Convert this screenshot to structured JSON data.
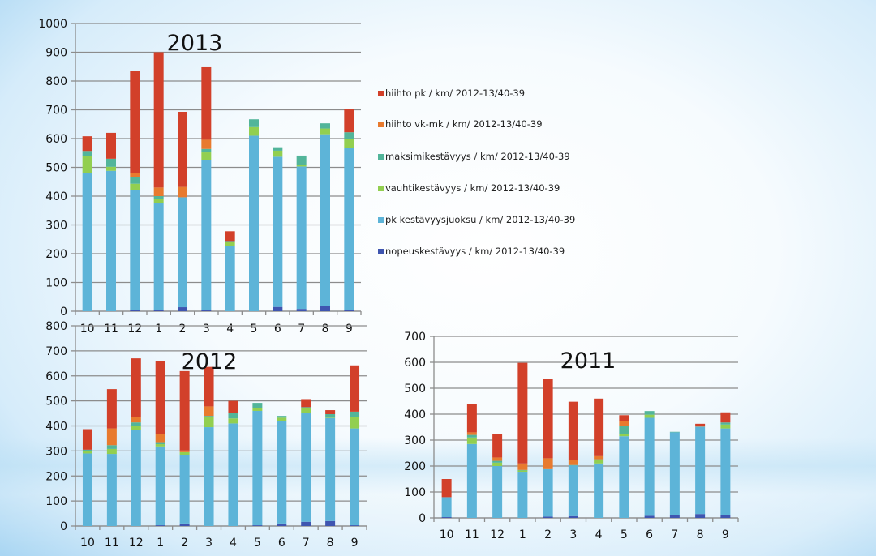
{
  "chart_data": [
    {
      "type": "bar",
      "stacked": true,
      "title": "2013",
      "categories": [
        "10",
        "11",
        "12",
        "1",
        "2",
        "3",
        "4",
        "5",
        "6",
        "7",
        "8",
        "9"
      ],
      "ylim": [
        0,
        1000
      ],
      "yticks": [
        0,
        100,
        200,
        300,
        400,
        500,
        600,
        700,
        800,
        900,
        1000
      ],
      "grid": true,
      "series": [
        {
          "name": "nopeuskestävyys / km/ 2012-13/40-39",
          "values": [
            0,
            0,
            5,
            5,
            14,
            3,
            0,
            0,
            15,
            8,
            18,
            5
          ]
        },
        {
          "name": "pk kestävyysjuoksu / km/ 2012-13/40-39",
          "values": [
            480,
            488,
            417,
            372,
            382,
            521,
            228,
            610,
            522,
            495,
            597,
            563
          ]
        },
        {
          "name": "vauhtikestävyys / km/ 2012-13/40-39",
          "values": [
            60,
            14,
            21,
            13,
            0,
            28,
            12,
            30,
            21,
            5,
            20,
            32
          ]
        },
        {
          "name": "maksimikestävyys / km/ 2012-13/40-39",
          "values": [
            17,
            28,
            24,
            10,
            0,
            12,
            4,
            27,
            12,
            33,
            18,
            22
          ]
        },
        {
          "name": "hiihto vk-mk / km/ 2012-13/40-39",
          "values": [
            0,
            0,
            13,
            30,
            36,
            32,
            0,
            0,
            0,
            0,
            0,
            0
          ]
        },
        {
          "name": "hiihto pk / km/ 2012-13/40-39",
          "values": [
            51,
            90,
            355,
            470,
            261,
            252,
            34,
            0,
            0,
            0,
            0,
            80
          ]
        }
      ]
    },
    {
      "type": "bar",
      "stacked": true,
      "title": "2012",
      "categories": [
        "10",
        "11",
        "12",
        "1",
        "2",
        "3",
        "4",
        "5",
        "6",
        "7",
        "8",
        "9"
      ],
      "ylim": [
        0,
        800
      ],
      "yticks": [
        0,
        100,
        200,
        300,
        400,
        500,
        600,
        700,
        800
      ],
      "grid": true,
      "series": [
        {
          "name": "nopeuskestävyys",
          "values": [
            0,
            0,
            0,
            3,
            10,
            0,
            0,
            3,
            10,
            17,
            20,
            3
          ]
        },
        {
          "name": "pk kestävyysjuoksu",
          "values": [
            290,
            288,
            383,
            315,
            272,
            395,
            410,
            457,
            408,
            435,
            412,
            387
          ]
        },
        {
          "name": "vauhtikestävyys",
          "values": [
            10,
            20,
            17,
            9,
            13,
            39,
            20,
            12,
            15,
            18,
            5,
            44
          ]
        },
        {
          "name": "maksimikestävyys",
          "values": [
            5,
            15,
            14,
            8,
            0,
            6,
            22,
            20,
            7,
            5,
            10,
            23
          ]
        },
        {
          "name": "hiihto vk-mk",
          "values": [
            0,
            67,
            20,
            32,
            7,
            38,
            0,
            0,
            0,
            0,
            0,
            0
          ]
        },
        {
          "name": "hiihto pk",
          "values": [
            82,
            157,
            236,
            293,
            317,
            158,
            48,
            0,
            0,
            32,
            16,
            185
          ]
        }
      ]
    },
    {
      "type": "bar",
      "stacked": true,
      "title": "2011",
      "categories": [
        "10",
        "11",
        "12",
        "1",
        "2",
        "3",
        "4",
        "5",
        "6",
        "7",
        "8",
        "9"
      ],
      "ylim": [
        0,
        700
      ],
      "yticks": [
        0,
        100,
        200,
        300,
        400,
        500,
        600,
        700
      ],
      "grid": true,
      "series": [
        {
          "name": "nopeuskestävyys",
          "values": [
            3,
            0,
            0,
            0,
            5,
            7,
            0,
            0,
            8,
            10,
            15,
            12
          ]
        },
        {
          "name": "pk kestävyysjuoksu",
          "values": [
            77,
            285,
            200,
            178,
            183,
            195,
            210,
            315,
            378,
            320,
            337,
            333
          ]
        },
        {
          "name": "vauhtikestävyys",
          "values": [
            0,
            25,
            13,
            5,
            0,
            0,
            12,
            9,
            12,
            0,
            0,
            15
          ]
        },
        {
          "name": "maksimikestävyys",
          "values": [
            0,
            10,
            7,
            2,
            0,
            2,
            4,
            30,
            14,
            2,
            0,
            8
          ]
        },
        {
          "name": "hiihto vk-mk",
          "values": [
            0,
            10,
            13,
            25,
            42,
            21,
            12,
            21,
            0,
            0,
            3,
            0
          ]
        },
        {
          "name": "hiihto pk",
          "values": [
            70,
            110,
            90,
            388,
            305,
            223,
            222,
            21,
            0,
            0,
            8,
            39
          ]
        }
      ]
    }
  ],
  "series_colors": [
    "#3f55b0",
    "#5db4d8",
    "#92cf50",
    "#52b59a",
    "#e87a2e",
    "#d2402a"
  ],
  "legend": {
    "placement": "right of 2013 chart",
    "items": [
      {
        "label": "hiihto pk / km/ 2012-13/40-39",
        "color": "#d2402a"
      },
      {
        "label": "hiihto vk-mk / km/ 2012-13/40-39",
        "color": "#e87a2e"
      },
      {
        "label": "maksimikestävyys / km/ 2012-13/40-39",
        "color": "#52b59a"
      },
      {
        "label": "vauhtikestävyys / km/ 2012-13/40-39",
        "color": "#92cf50"
      },
      {
        "label": "pk kestävyysjuoksu / km/ 2012-13/40-39",
        "color": "#5db4d8"
      },
      {
        "label": "nopeuskestävyys / km/ 2012-13/40-39",
        "color": "#3f55b0"
      }
    ]
  }
}
